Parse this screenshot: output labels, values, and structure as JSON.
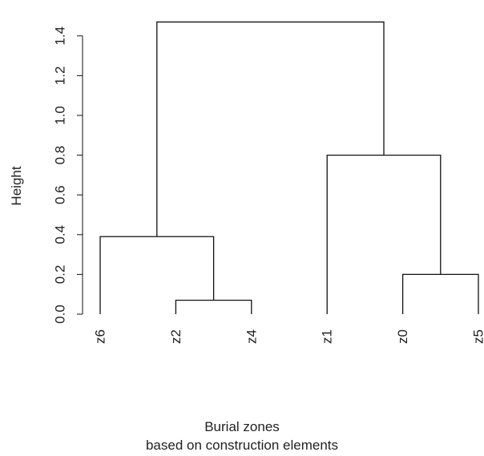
{
  "chart_data": {
    "type": "dendrogram",
    "title": "",
    "xlabel_lines": [
      "Burial zones",
      "based on construction elements"
    ],
    "ylabel": "Height",
    "ylim": [
      0,
      1.47
    ],
    "y_ticks": [
      0.0,
      0.2,
      0.4,
      0.6,
      0.8,
      1.0,
      1.2,
      1.4
    ],
    "y_tick_labels": [
      "0.0",
      "0.2",
      "0.4",
      "0.6",
      "0.8",
      "1.0",
      "1.2",
      "1.4"
    ],
    "leaves": [
      "z6",
      "z2",
      "z4",
      "z1",
      "z0",
      "z5"
    ],
    "merges": [
      {
        "left": "z2",
        "right": "z4",
        "height": 0.07
      },
      {
        "left": "z0",
        "right": "z5",
        "height": 0.2
      },
      {
        "left": "z6",
        "right": "m1",
        "height": 0.39
      },
      {
        "left": "z1",
        "right": "m2",
        "height": 0.8
      },
      {
        "left": "m3",
        "right": "m4",
        "height": 1.47
      }
    ],
    "grid": false,
    "colors": {
      "lines": "#111111",
      "text": "#222222"
    }
  }
}
